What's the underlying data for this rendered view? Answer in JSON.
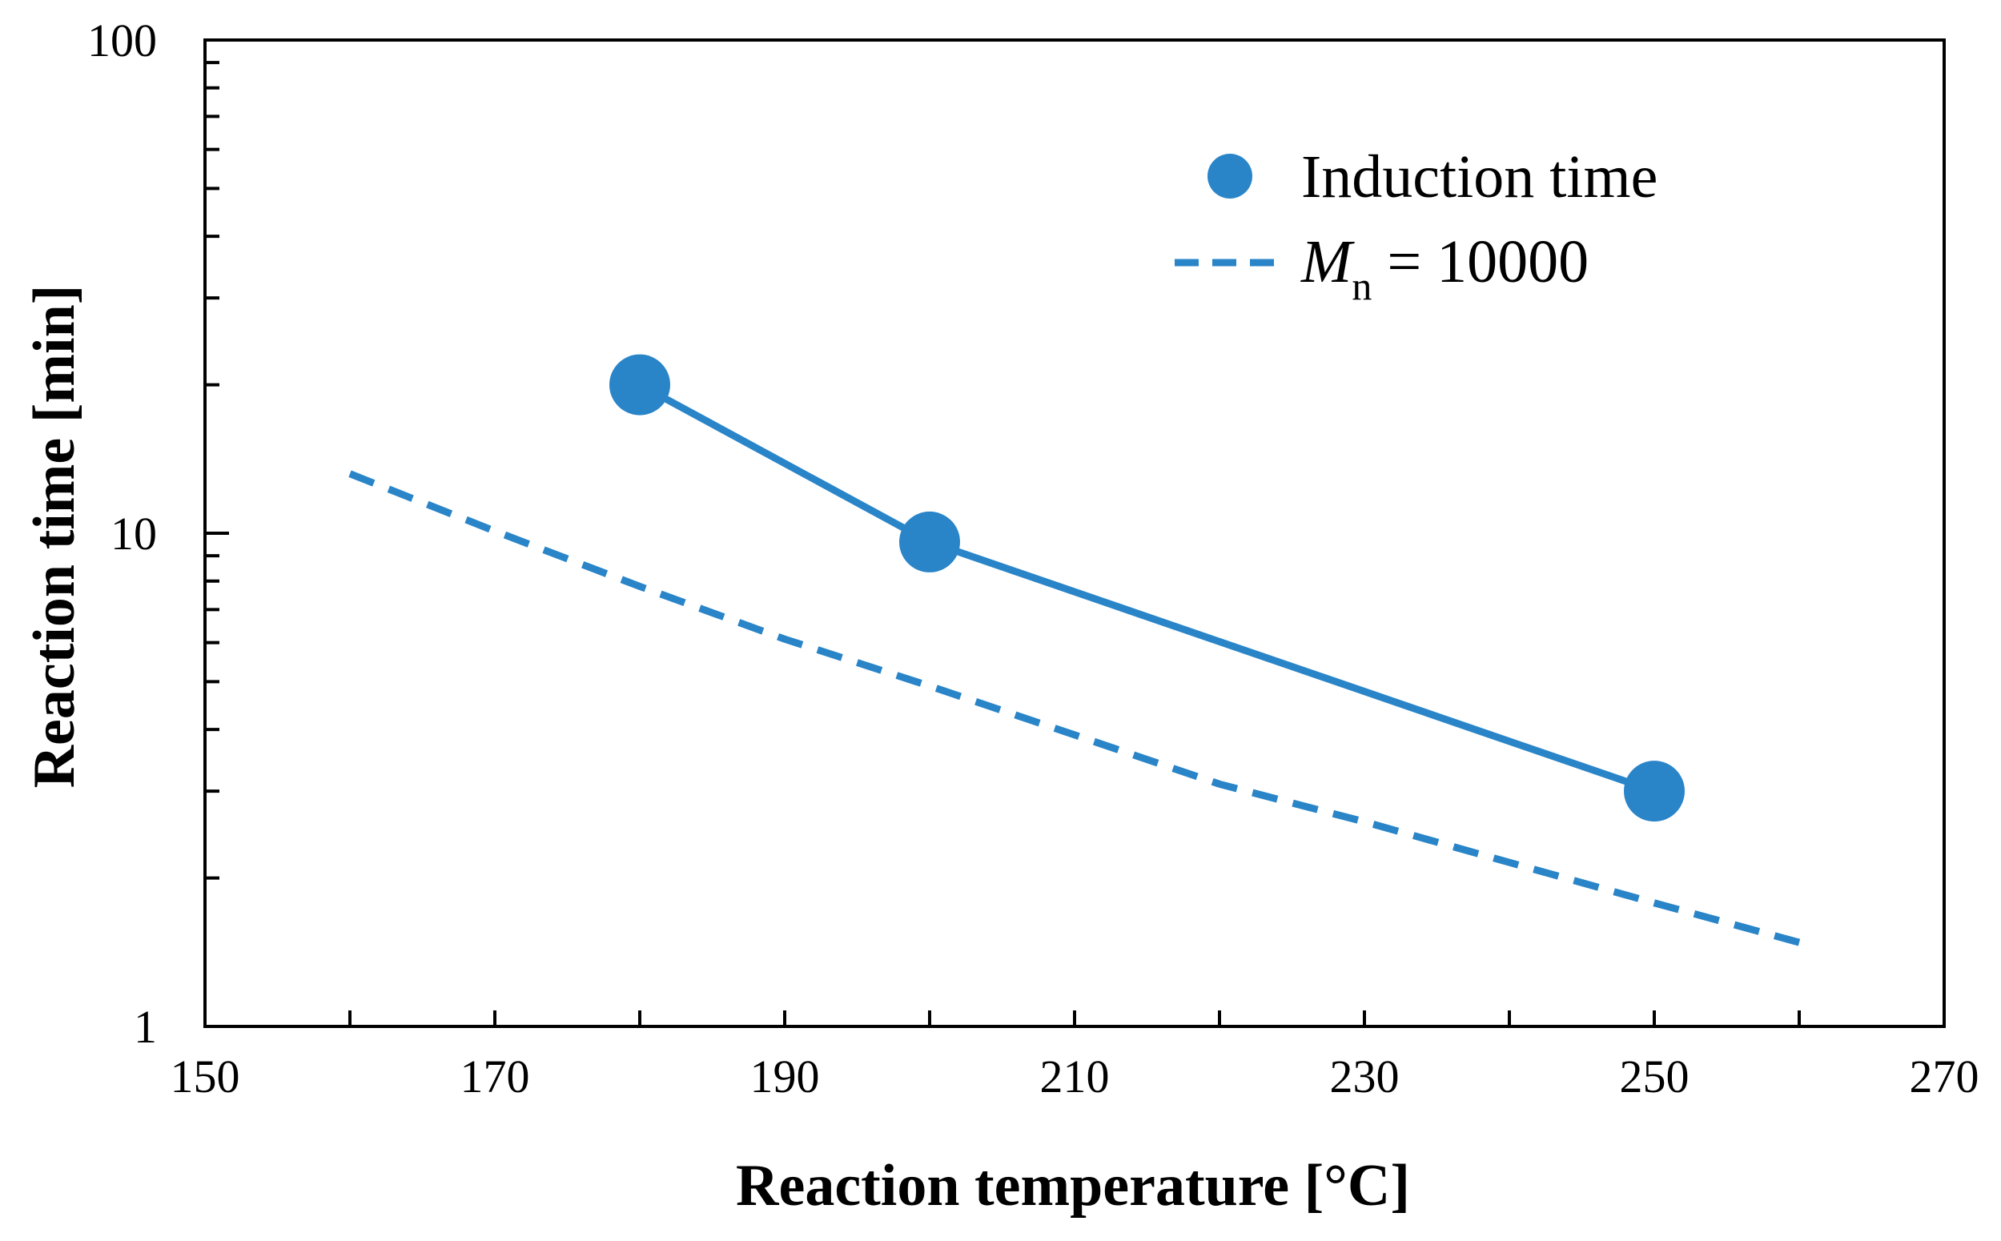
{
  "chart_data": {
    "type": "line",
    "title": "",
    "xlabel": "Reaction temperature [°C]",
    "ylabel": "Reaction time [min]",
    "xlim": [
      150,
      270
    ],
    "ylim": [
      1,
      100
    ],
    "yscale": "log",
    "x_ticks": [
      "150",
      "170",
      "190",
      "210",
      "230",
      "250",
      "270"
    ],
    "y_ticks": [
      "1",
      "10",
      "100"
    ],
    "grid": false,
    "legend_position": "top-right",
    "series": [
      {
        "name": "Induction time",
        "style": "solid-line-markers",
        "color": "#2a85c8",
        "x": [
          180,
          200,
          250
        ],
        "y": [
          20,
          9.6,
          3.0
        ]
      },
      {
        "name": "Mn = 10000",
        "legend_main": "M",
        "legend_sub": "n",
        "legend_rest": " = 10000",
        "style": "dashed-line",
        "color": "#2a85c8",
        "x": [
          160,
          170,
          180,
          190,
          200,
          210,
          220,
          230,
          240,
          250,
          260
        ],
        "y": [
          13.2,
          10.1,
          7.8,
          6.1,
          4.9,
          3.9,
          3.1,
          2.6,
          2.15,
          1.78,
          1.48
        ]
      }
    ]
  }
}
